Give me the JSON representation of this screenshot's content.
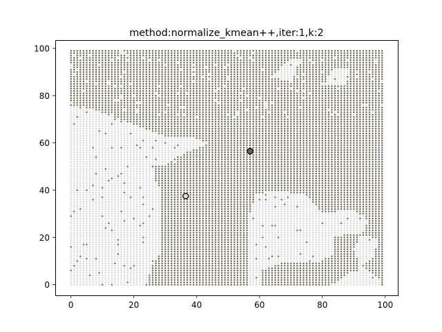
{
  "chart_data": {
    "type": "scatter",
    "title": "method:normalize_kmean++,iter:1,k:2",
    "xlabel": "",
    "ylabel": "",
    "xlim": [
      -5,
      104
    ],
    "ylim": [
      -4.5,
      103.5
    ],
    "xticks": [
      0,
      20,
      40,
      60,
      80,
      100
    ],
    "yticks": [
      0,
      20,
      40,
      60,
      80,
      100
    ],
    "grid": false,
    "legend": "none",
    "grid_points": {
      "x_range": [
        0,
        99
      ],
      "y_range": [
        0,
        99
      ],
      "step": 1,
      "cluster_colors": [
        "#d8d8d8",
        "#6e6a55"
      ]
    },
    "centroids": [
      {
        "x": 36.5,
        "y": 37.5,
        "color": "#d8d8d8"
      },
      {
        "x": 57.0,
        "y": 56.5,
        "color": "#6e6a55"
      }
    ]
  }
}
